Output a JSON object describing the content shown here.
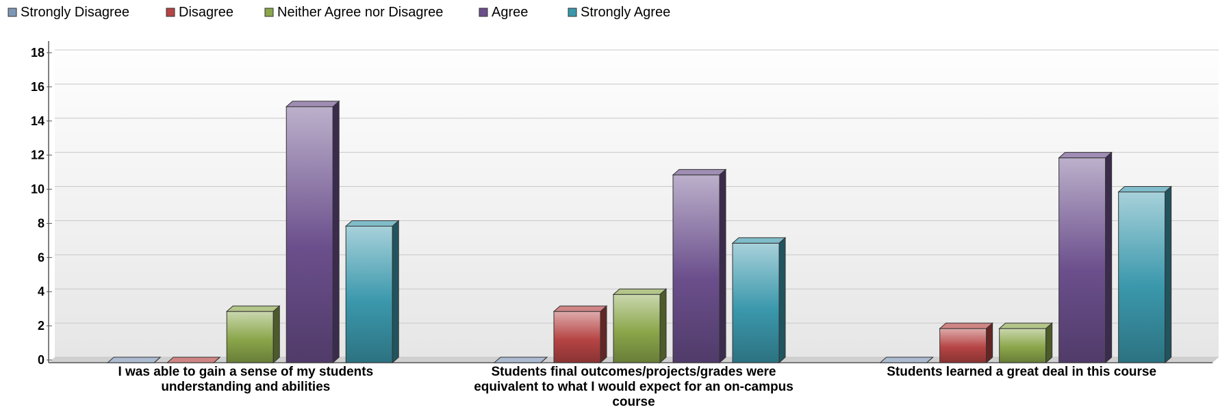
{
  "chart_data": {
    "type": "bar",
    "title": "",
    "xlabel": "",
    "ylabel": "",
    "ylim": [
      0,
      18
    ],
    "yticks": [
      0,
      2,
      4,
      6,
      8,
      10,
      12,
      14,
      16,
      18
    ],
    "grid": true,
    "legend_position": "top-left",
    "categories": [
      [
        "I was able to gain a sense of my students",
        "understanding and abilities"
      ],
      [
        "Students final outcomes/projects/grades were",
        "equivalent to what I would expect for an on-campus",
        "course"
      ],
      [
        "Students learned a great deal in this course"
      ]
    ],
    "series": [
      {
        "name": "Strongly Disagree",
        "color": "#7f97b6",
        "values": [
          0,
          0,
          0
        ]
      },
      {
        "name": "Disagree",
        "color": "#b64444",
        "values": [
          0,
          3,
          2
        ]
      },
      {
        "name": "Neither Agree nor Disagree",
        "color": "#8aa64a",
        "values": [
          3,
          4,
          2
        ]
      },
      {
        "name": "Agree",
        "color": "#6b4f8c",
        "values": [
          15,
          11,
          12
        ]
      },
      {
        "name": "Strongly Agree",
        "color": "#3b98ac",
        "values": [
          8,
          7,
          10
        ]
      }
    ]
  }
}
